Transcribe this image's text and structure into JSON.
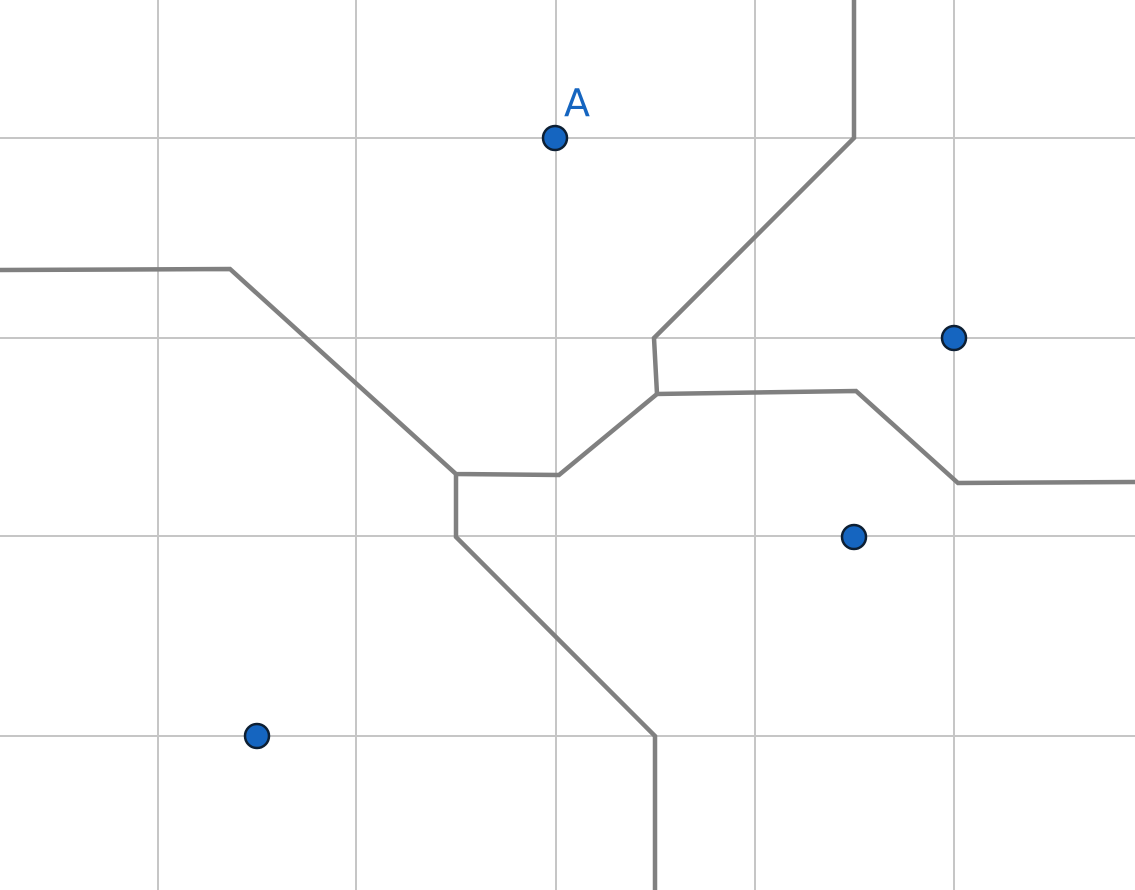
{
  "diagram": {
    "type": "voronoi-grid",
    "colors": {
      "background": "#ffffff",
      "grid": "#c6c6c6",
      "edge": "#808080",
      "point_fill": "#1565c0",
      "point_stroke": "#0d1f33",
      "label": "#1565c0"
    },
    "points": [
      {
        "id": "point-a",
        "label": "A"
      },
      {
        "id": "point-right-upper",
        "label": ""
      },
      {
        "id": "point-right-lower",
        "label": ""
      },
      {
        "id": "point-lower-left",
        "label": ""
      }
    ]
  }
}
